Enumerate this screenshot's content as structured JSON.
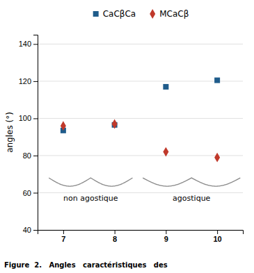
{
  "chart_data": {
    "type": "scatter",
    "ylabel": "angles (°)",
    "x": [
      7,
      8,
      9,
      10
    ],
    "series": [
      {
        "name": "CaCβCa",
        "color": "#1F5C8B",
        "marker": "square",
        "values": [
          93.5,
          96.5,
          117,
          120.5
        ]
      },
      {
        "name": "MCaCβ",
        "color": "#C0392B",
        "marker": "diamond",
        "values": [
          96,
          97,
          82,
          79
        ]
      }
    ],
    "xlim": [
      6.5,
      10.5
    ],
    "ylim": [
      40,
      145
    ],
    "xticks": [
      7,
      8,
      9,
      10
    ],
    "yticks": [
      40,
      60,
      80,
      100,
      120,
      140
    ],
    "grid": "y",
    "legend": "top",
    "annotations": [
      {
        "text": "non agostique",
        "x_range": [
          6.72,
          8.35
        ],
        "y": 68,
        "label_y": 58.5,
        "color": "#888888"
      },
      {
        "text": "agostique",
        "x_range": [
          8.55,
          10.45
        ],
        "y": 68,
        "label_y": 58.5,
        "color": "#888888"
      }
    ],
    "caption": "Figure  2.   Angles   caractéristiques   des"
  }
}
